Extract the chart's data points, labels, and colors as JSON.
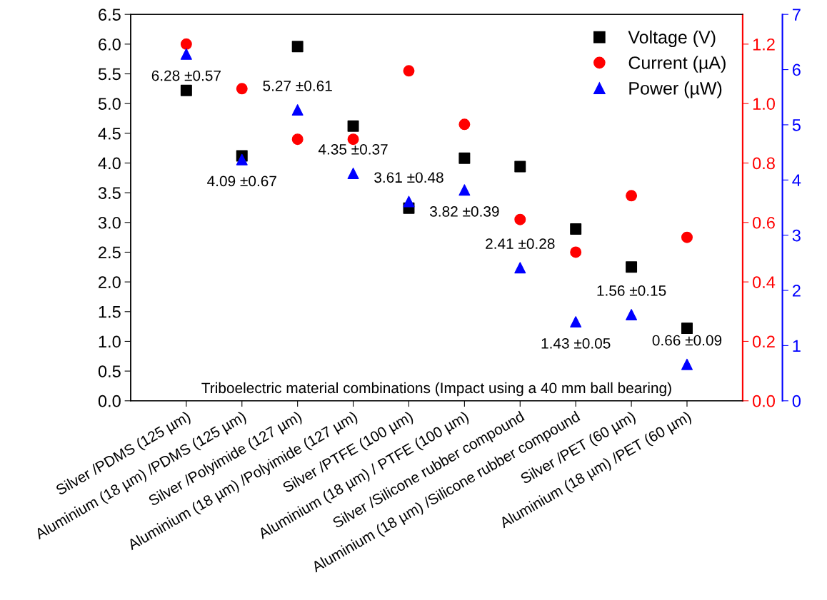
{
  "chart_data": {
    "type": "scatter",
    "categories": [
      "Silver /PDMS (125 µm)",
      "Aluminium (18 µm) /PDMS (125 µm)",
      "Silver /Polyimide (127 µm)",
      "Aluminium (18 µm) /Polyimide (127 µm)",
      "Silver /PTFE (100 µm)",
      "Aluminium (18 µm) / PTFE (100 µm)",
      "Silver /Silicone rubber compound",
      "Aluminium (18 µm) /Silicone rubber compound",
      "Silver /PET (60 µm)",
      "Aluminium (18 µm) /PET (60 µm)"
    ],
    "series": [
      {
        "name": "Voltage (V)",
        "color": "#000000",
        "marker": "square",
        "axis": "y",
        "values": [
          5.22,
          4.12,
          5.96,
          4.62,
          3.24,
          4.08,
          3.94,
          2.89,
          2.25,
          1.22
        ]
      },
      {
        "name": "Current (µA)",
        "color": "#ff0000",
        "marker": "circle",
        "axis": "y2",
        "values": [
          1.2,
          1.05,
          0.88,
          0.88,
          1.11,
          0.93,
          0.61,
          0.5,
          0.69,
          0.55
        ]
      },
      {
        "name": "Power (µW)",
        "color": "#0000ff",
        "marker": "triangle",
        "axis": "y3",
        "values": [
          6.28,
          4.37,
          5.27,
          4.12,
          3.61,
          3.82,
          2.41,
          1.43,
          1.56,
          0.66
        ],
        "value_labels": [
          "6.28 ±0.57",
          "4.09 ±0.67",
          "5.27 ±0.61",
          "4.35 ±0.37",
          "3.61 ±0.48",
          "3.82 ±0.39",
          "2.41 ±0.28",
          "1.43 ±0.05",
          "1.56 ±0.15",
          "0.66 ±0.09"
        ]
      }
    ],
    "ylim": [
      0,
      6.5
    ],
    "yticks": [
      {
        "value": 0,
        "label": "0.0"
      },
      {
        "value": 0.5,
        "label": "0.5"
      },
      {
        "value": 1,
        "label": "1.0"
      },
      {
        "value": 1.5,
        "label": "1.5"
      },
      {
        "value": 2,
        "label": "2.0"
      },
      {
        "value": 2.5,
        "label": "2.5"
      },
      {
        "value": 3,
        "label": "3.0"
      },
      {
        "value": 3.5,
        "label": "3.5"
      },
      {
        "value": 4,
        "label": "4.0"
      },
      {
        "value": 4.5,
        "label": "4.5"
      },
      {
        "value": 5,
        "label": "5.0"
      },
      {
        "value": 5.5,
        "label": "5.5"
      },
      {
        "value": 6,
        "label": "6.0"
      },
      {
        "value": 6.5,
        "label": "6.5"
      }
    ],
    "y2lim": [
      0,
      1.3
    ],
    "y2ticks": [
      {
        "value": 0,
        "label": "0.0"
      },
      {
        "value": 0.2,
        "label": "0.2"
      },
      {
        "value": 0.4,
        "label": "0.4"
      },
      {
        "value": 0.6,
        "label": "0.6"
      },
      {
        "value": 0.8,
        "label": "0.8"
      },
      {
        "value": 1,
        "label": "1.0"
      },
      {
        "value": 1.2,
        "label": "1.2"
      }
    ],
    "y3lim": [
      0,
      7
    ],
    "y3ticks": [
      0,
      1,
      2,
      3,
      4,
      5,
      6,
      7
    ],
    "annotations": [
      "Triboelectric material combinations (Impact using a 40 mm ball bearing)"
    ],
    "legend": "top right",
    "grid": false
  }
}
